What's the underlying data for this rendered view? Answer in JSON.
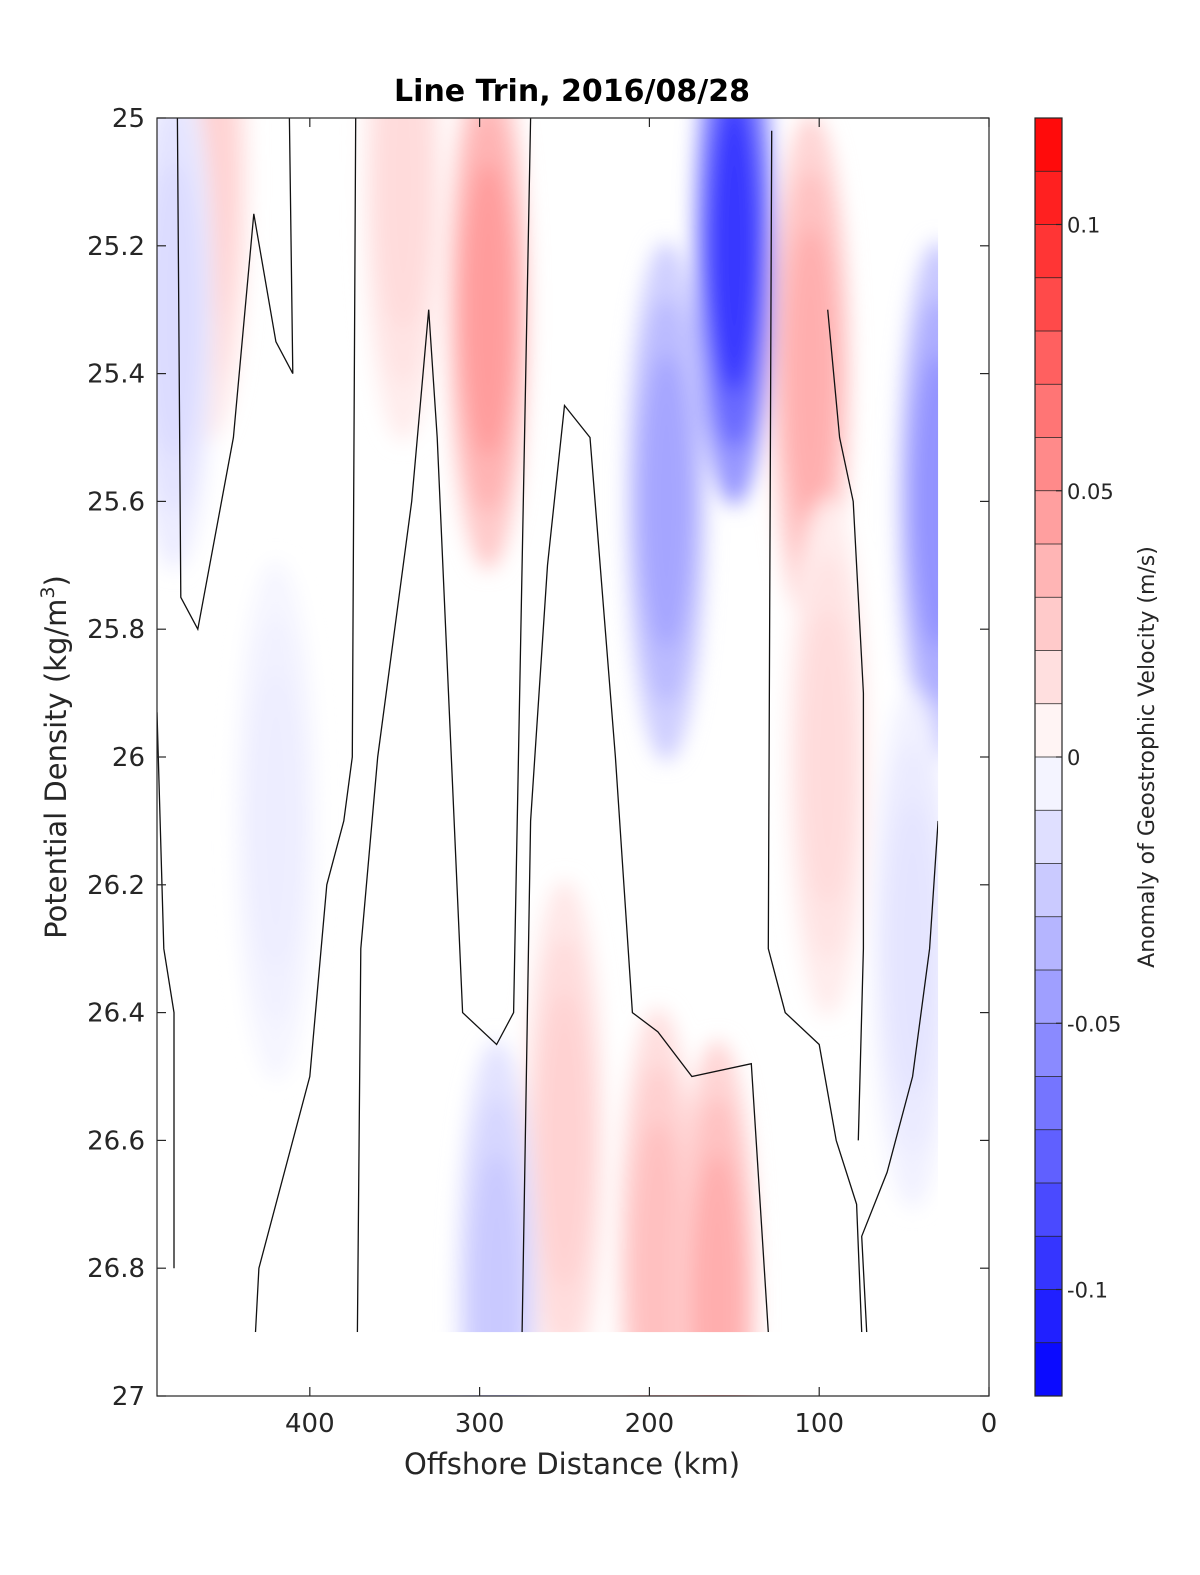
{
  "chart_data": {
    "type": "heatmap",
    "subtype": "filled-contour section",
    "title": "Line Trin, 2016/08/28",
    "xlabel": "Offshore Distance (km)",
    "ylabel": "Potential Density (kg/m",
    "ylabel_sup": "3",
    "ylabel_end": ")",
    "colorbar_label": "Anomaly of Geostrophic Velocity (m/s)",
    "x_reversed": true,
    "y_reversed": true,
    "xlim": [
      490,
      0
    ],
    "ylim": [
      25,
      27
    ],
    "x_ticks": [
      400,
      300,
      200,
      100,
      0
    ],
    "y_ticks": [
      "25",
      "25.2",
      "25.4",
      "25.6",
      "25.8",
      "26",
      "26.2",
      "26.4",
      "26.6",
      "26.8",
      "27"
    ],
    "colorbar_range": [
      -0.12,
      0.12
    ],
    "colorbar_ticks": [
      {
        "value": 0.1,
        "label": "0.1"
      },
      {
        "value": 0.05,
        "label": "0.05"
      },
      {
        "value": 0,
        "label": "0"
      },
      {
        "value": -0.05,
        "label": "-0.05"
      },
      {
        "value": -0.1,
        "label": "-0.1"
      }
    ],
    "colorbar_levels": 24,
    "colormap": {
      "negative": "#0000ff",
      "zero": "#ffffff",
      "positive": "#ff0000"
    },
    "grid": false,
    "data_extent": {
      "x": [
        490,
        30
      ],
      "y": [
        25,
        26.9
      ]
    },
    "anomaly_cores": [
      {
        "x": 460,
        "y": 25.1,
        "v": 0.025
      },
      {
        "x": 345,
        "y": 25.1,
        "v": 0.02
      },
      {
        "x": 295,
        "y": 25.3,
        "v": 0.055
      },
      {
        "x": 250,
        "y": 26.6,
        "v": 0.025
      },
      {
        "x": 195,
        "y": 26.8,
        "v": 0.035
      },
      {
        "x": 160,
        "y": 26.85,
        "v": 0.045
      },
      {
        "x": 105,
        "y": 25.4,
        "v": 0.045
      },
      {
        "x": 95,
        "y": 26.0,
        "v": 0.02
      },
      {
        "x": 150,
        "y": 25.2,
        "v": -0.11
      },
      {
        "x": 190,
        "y": 25.6,
        "v": -0.05
      },
      {
        "x": 480,
        "y": 25.3,
        "v": -0.02
      },
      {
        "x": 290,
        "y": 26.85,
        "v": -0.03
      },
      {
        "x": 30,
        "y": 25.6,
        "v": -0.06
      },
      {
        "x": 420,
        "y": 26.1,
        "v": -0.01
      },
      {
        "x": 45,
        "y": 26.3,
        "v": -0.015
      }
    ],
    "zero_contours": [
      [
        [
          478,
          25
        ],
        [
          476,
          25.75
        ],
        [
          466,
          25.8
        ],
        [
          445,
          25.5
        ],
        [
          433,
          25.15
        ],
        [
          420,
          25.35
        ],
        [
          410,
          25.4
        ],
        [
          412,
          25
        ]
      ],
      [
        [
          373,
          25
        ],
        [
          375,
          26.0
        ],
        [
          380,
          26.1
        ],
        [
          390,
          26.2
        ],
        [
          400,
          26.5
        ],
        [
          430,
          26.8
        ],
        [
          432,
          26.9
        ]
      ],
      [
        [
          490,
          25.93
        ],
        [
          486,
          26.3
        ],
        [
          480,
          26.4
        ],
        [
          480,
          26.8
        ]
      ],
      [
        [
          270,
          25
        ],
        [
          280,
          26.4
        ],
        [
          290,
          26.45
        ],
        [
          310,
          26.4
        ],
        [
          325,
          25.5
        ],
        [
          330,
          25.3
        ],
        [
          340,
          25.6
        ],
        [
          360,
          26.0
        ],
        [
          370,
          26.3
        ],
        [
          372,
          26.9
        ]
      ],
      [
        [
          275,
          26.9
        ],
        [
          270,
          26.1
        ],
        [
          260,
          25.7
        ],
        [
          250,
          25.45
        ],
        [
          235,
          25.5
        ],
        [
          220,
          26.0
        ],
        [
          210,
          26.4
        ],
        [
          195,
          26.43
        ],
        [
          175,
          26.5
        ],
        [
          140,
          26.48
        ],
        [
          130,
          26.9
        ]
      ],
      [
        [
          128,
          25.02
        ],
        [
          130,
          26.3
        ],
        [
          120,
          26.4
        ],
        [
          100,
          26.45
        ],
        [
          90,
          26.6
        ],
        [
          78,
          26.7
        ],
        [
          75,
          26.9
        ]
      ],
      [
        [
          72,
          26.9
        ],
        [
          75,
          26.75
        ],
        [
          60,
          26.65
        ],
        [
          45,
          26.5
        ],
        [
          35,
          26.3
        ],
        [
          30,
          26.1
        ]
      ],
      [
        [
          95,
          25.3
        ],
        [
          88,
          25.5
        ],
        [
          80,
          25.6
        ],
        [
          74,
          25.9
        ],
        [
          74,
          26.3
        ],
        [
          77,
          26.6
        ]
      ]
    ]
  }
}
